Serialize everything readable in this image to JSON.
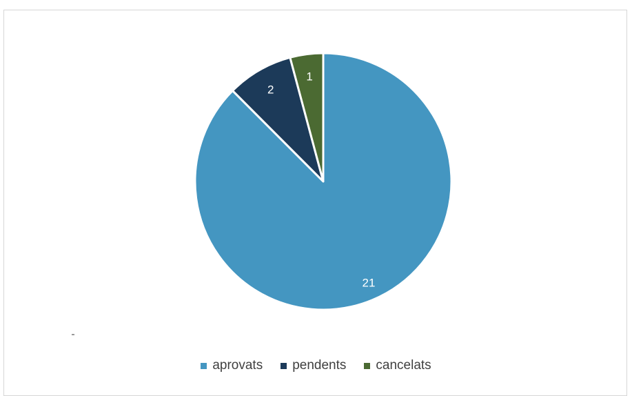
{
  "chart_data": {
    "type": "pie",
    "title": "",
    "categories": [
      "aprovats",
      "pendents",
      "cancelats"
    ],
    "values": [
      21,
      2,
      1
    ],
    "colors": [
      "#4496c1",
      "#1c3a59",
      "#4b6a32"
    ],
    "data_labels": [
      "21",
      "2",
      "1"
    ],
    "start_angle": "12 o'clock",
    "direction": "counterclockwise from top",
    "legend_position": "bottom"
  },
  "legend": {
    "items": [
      {
        "label": "aprovats",
        "color": "#4496c1"
      },
      {
        "label": "pendents",
        "color": "#1c3a59"
      },
      {
        "label": "cancelats",
        "color": "#4b6a32"
      }
    ]
  }
}
